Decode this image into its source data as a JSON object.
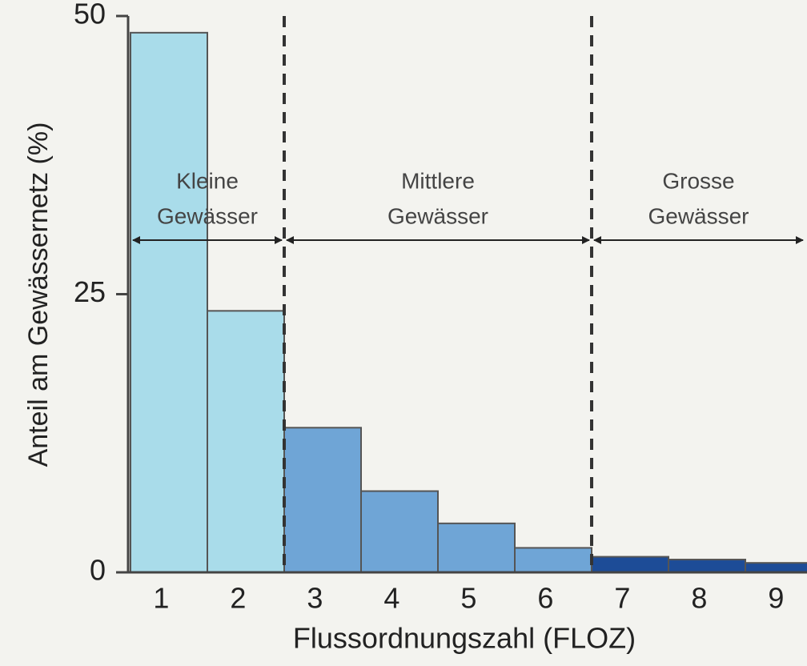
{
  "chart_data": {
    "type": "bar",
    "categories": [
      "1",
      "2",
      "3",
      "4",
      "5",
      "6",
      "7",
      "8",
      "9"
    ],
    "values": [
      48.5,
      23.5,
      13,
      7.3,
      4.4,
      2.2,
      1.4,
      1.15,
      0.85
    ],
    "colors": [
      "#a9dcea",
      "#a9dcea",
      "#6fa5d6",
      "#6fa5d6",
      "#6fa5d6",
      "#6fa5d6",
      "#1d4c97",
      "#1d4c97",
      "#1d4c97"
    ],
    "ylim": [
      0,
      50
    ],
    "yticks": [
      0,
      25,
      50
    ],
    "y_label": "Anteil am Gewässernetz (%)",
    "x_label": "Flussordnungszahl (FLOZ)",
    "annotations": [
      [
        "Kleine",
        "Gewässer"
      ],
      [
        "Mittlere",
        "Gewässer"
      ],
      [
        "Grosse",
        "Gewässer"
      ]
    ]
  }
}
